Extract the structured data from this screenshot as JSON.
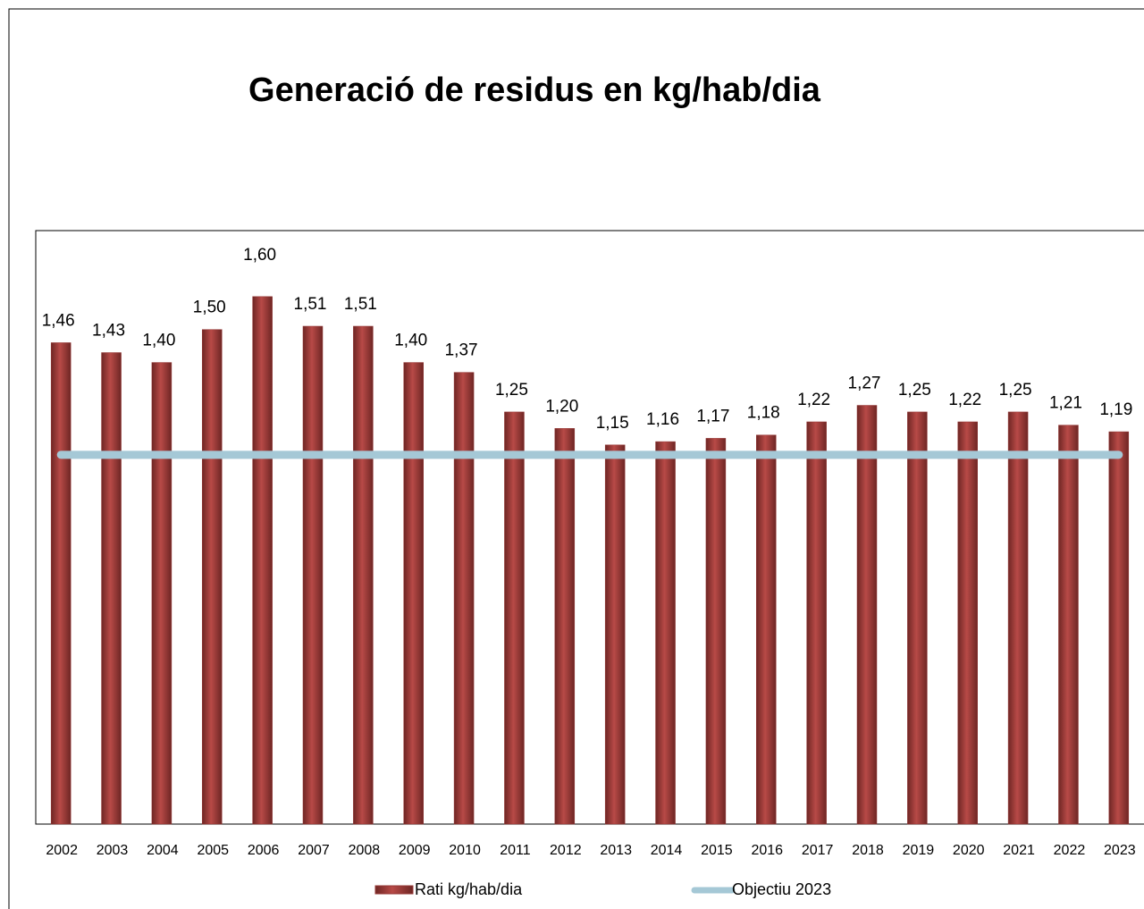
{
  "chart_data": {
    "type": "bar",
    "title": "Generació de residus en kg/hab/dia",
    "categories": [
      "2002",
      "2003",
      "2004",
      "2005",
      "2006",
      "2007",
      "2008",
      "2009",
      "2010",
      "2011",
      "2012",
      "2013",
      "2014",
      "2015",
      "2016",
      "2017",
      "2018",
      "2019",
      "2020",
      "2021",
      "2022",
      "2023"
    ],
    "series": [
      {
        "name": "Rati kg/hab/dia",
        "color": "#953735",
        "values": [
          1.46,
          1.43,
          1.4,
          1.5,
          1.6,
          1.51,
          1.51,
          1.4,
          1.37,
          1.25,
          1.2,
          1.15,
          1.16,
          1.17,
          1.18,
          1.22,
          1.27,
          1.25,
          1.22,
          1.25,
          1.21,
          1.19
        ],
        "value_labels": [
          "1,46",
          "1,43",
          "1,40",
          "1,50",
          "1,60",
          "1,51",
          "1,51",
          "1,40",
          "1,37",
          "1,25",
          "1,20",
          "1,15",
          "1,16",
          "1,17",
          "1,18",
          "1,22",
          "1,27",
          "1,25",
          "1,22",
          "1,25",
          "1,21",
          "1,19"
        ]
      },
      {
        "name": "Objectiu 2023",
        "color": "#a5c8d6",
        "type": "line",
        "values": [
          1.12,
          1.12,
          1.12,
          1.12,
          1.12,
          1.12,
          1.12,
          1.12,
          1.12,
          1.12,
          1.12,
          1.12,
          1.12,
          1.12,
          1.12,
          1.12,
          1.12,
          1.12,
          1.12,
          1.12,
          1.12,
          1.12
        ]
      }
    ],
    "ylim": [
      0,
      1.8
    ]
  }
}
